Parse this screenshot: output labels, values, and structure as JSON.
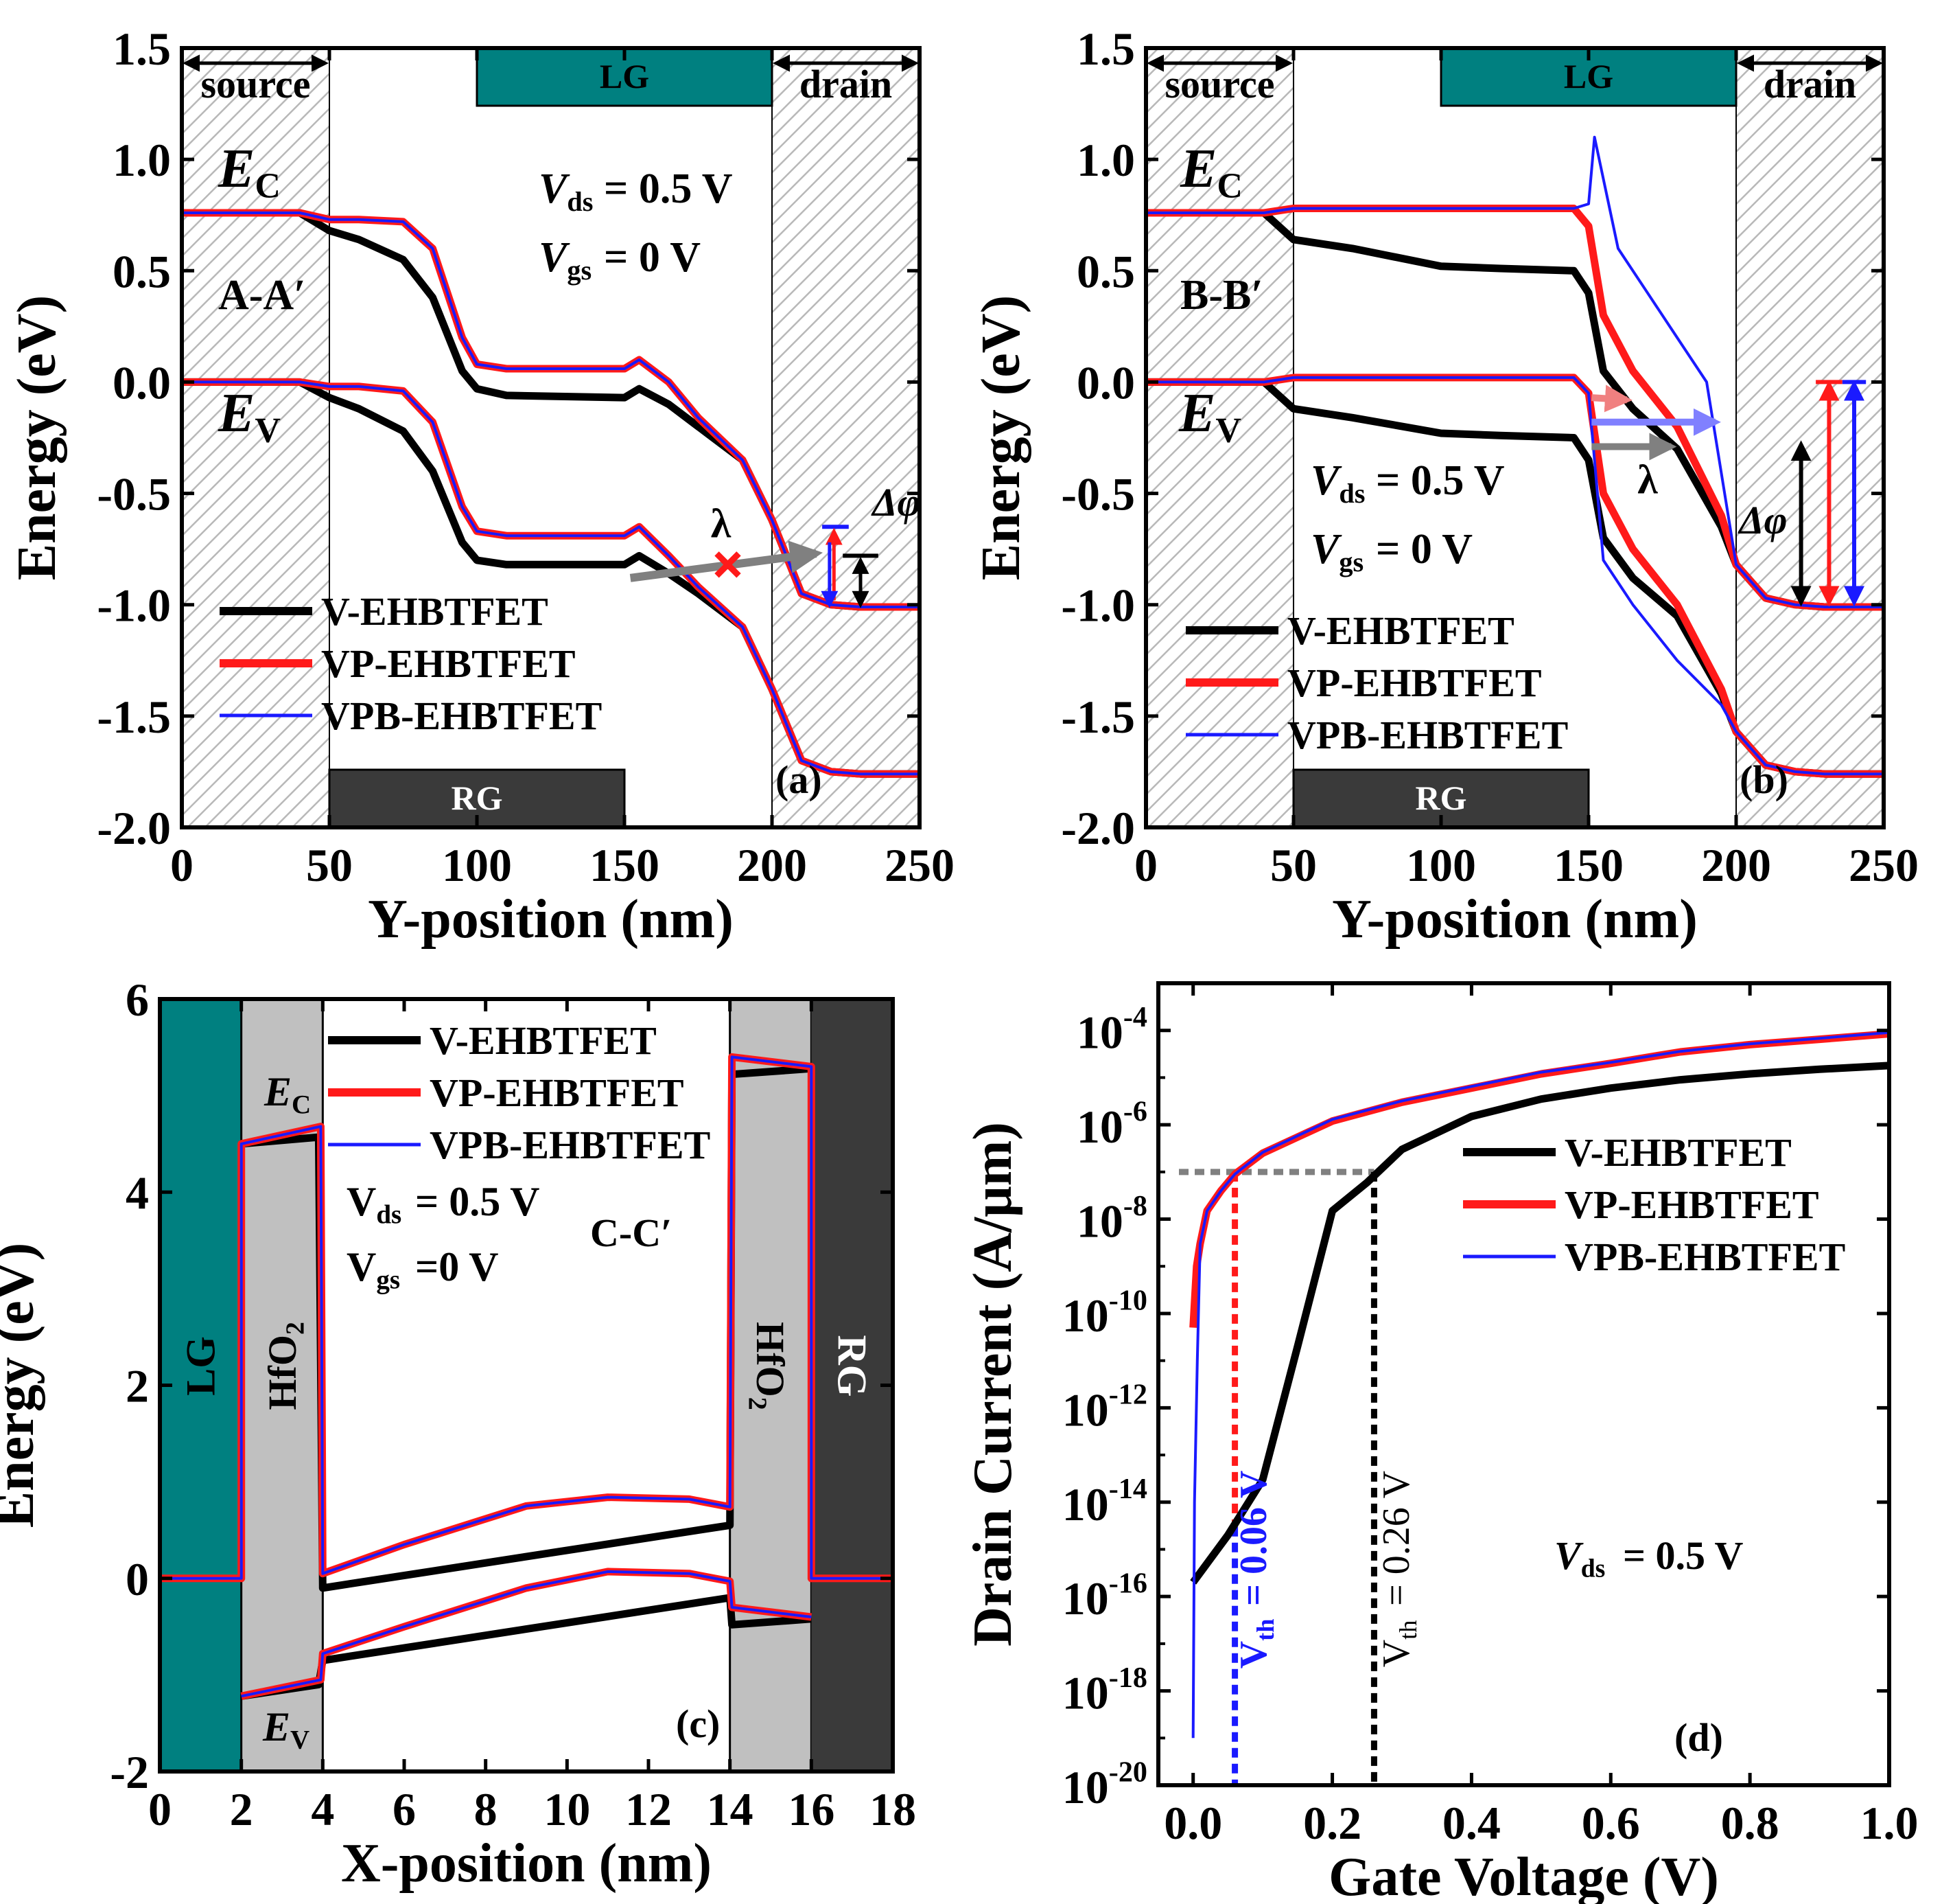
{
  "panels": {
    "a": {
      "label": "(a)",
      "xlabel": "Y-position (nm)",
      "ylabel": "Energy (eV)",
      "section": "A-A′",
      "ec": "E",
      "ec_sub": "C",
      "ev": "E",
      "ev_sub": "V",
      "vds": "= 0.5 V",
      "vgs": "= 0 V",
      "lambda": "λ",
      "dphi": "Δφ",
      "source": "source",
      "drain": "drain",
      "lg": "LG",
      "rg": "RG"
    },
    "b": {
      "label": "(b)",
      "xlabel": "Y-position (nm)",
      "ylabel": "Energy (eV)",
      "section": "B-B′",
      "ec": "E",
      "ec_sub": "C",
      "ev": "E",
      "ev_sub": "V",
      "vds": "= 0.5 V",
      "vgs": "= 0 V",
      "lambda": "λ",
      "dphi": "Δφ",
      "source": "source",
      "drain": "drain",
      "lg": "LG",
      "rg": "RG"
    },
    "c": {
      "label": "(c)",
      "xlabel": "X-position (nm)",
      "ylabel": "Energy (eV)",
      "section": "C-C′",
      "ec": "E",
      "ec_sub": "C",
      "ev": "E",
      "ev_sub": "V",
      "vds": "= 0.5 V",
      "vgs": "=0 V",
      "lg": "LG",
      "rg": "RG",
      "oxide": "HfO",
      "oxide_sub": "2"
    },
    "d": {
      "label": "(d)",
      "xlabel": "Gate Voltage (V)",
      "ylabel": "Drain Current (A/μm)",
      "vds": "= 0.5 V",
      "vth1": "= 0.06 V",
      "vth2": "= 0.26 V"
    }
  },
  "legend": [
    "V-EHBTFET",
    "VP-EHBTFET",
    "VPB-EHBTFET"
  ],
  "colors": {
    "v": "#000000",
    "vp": "#ff1a1a",
    "vpb": "#1a1aff",
    "lg": "#008080",
    "rg": "#3a3a3a",
    "oxide": "#c0c0c0",
    "hatch": "#b0b0b0"
  },
  "chart_data": [
    {
      "id": "a",
      "type": "line",
      "xlabel": "Y-position (nm)",
      "ylabel": "Energy (eV)",
      "xlim": [
        0,
        250
      ],
      "ylim": [
        -2.0,
        1.5
      ],
      "xticks": [
        0,
        50,
        100,
        150,
        200,
        250
      ],
      "yticks": [
        -2.0,
        -1.5,
        -1.0,
        -0.5,
        0.0,
        0.5,
        1.0,
        1.5
      ],
      "regions": {
        "source": [
          0,
          50
        ],
        "drain": [
          200,
          250
        ],
        "LG": [
          100,
          200
        ],
        "RG": [
          50,
          150
        ]
      },
      "series": [
        {
          "name": "V-EHBTFET",
          "band": "Ec",
          "x": [
            0,
            40,
            50,
            60,
            75,
            85,
            95,
            100,
            110,
            150,
            155,
            165,
            175,
            190,
            200,
            210,
            220,
            230,
            250
          ],
          "y": [
            0.76,
            0.76,
            0.68,
            0.64,
            0.55,
            0.38,
            0.05,
            -0.03,
            -0.06,
            -0.07,
            -0.03,
            -0.1,
            -0.2,
            -0.35,
            -0.62,
            -0.95,
            -1.0,
            -1.01,
            -1.01
          ]
        },
        {
          "name": "VP-EHBTFET",
          "band": "Ec",
          "x": [
            0,
            40,
            50,
            60,
            75,
            85,
            95,
            100,
            110,
            150,
            155,
            165,
            175,
            190,
            200,
            210,
            220,
            230,
            250
          ],
          "y": [
            0.76,
            0.76,
            0.73,
            0.73,
            0.72,
            0.6,
            0.2,
            0.08,
            0.06,
            0.06,
            0.1,
            0.0,
            -0.16,
            -0.35,
            -0.62,
            -0.95,
            -1.0,
            -1.01,
            -1.01
          ]
        },
        {
          "name": "VPB-EHBTFET",
          "band": "Ec",
          "x": [
            0,
            40,
            50,
            60,
            75,
            85,
            95,
            100,
            110,
            150,
            155,
            165,
            175,
            190,
            200,
            210,
            220,
            230,
            250
          ],
          "y": [
            0.76,
            0.76,
            0.73,
            0.73,
            0.72,
            0.6,
            0.2,
            0.08,
            0.06,
            0.06,
            0.1,
            0.0,
            -0.16,
            -0.35,
            -0.62,
            -0.95,
            -1.0,
            -1.01,
            -1.01
          ]
        },
        {
          "name": "V-EHBTFET",
          "band": "Ev",
          "x": [
            0,
            40,
            50,
            60,
            75,
            85,
            95,
            100,
            110,
            150,
            155,
            165,
            175,
            190,
            200,
            210,
            220,
            230,
            250
          ],
          "y": [
            0.0,
            0.0,
            -0.07,
            -0.12,
            -0.22,
            -0.4,
            -0.72,
            -0.8,
            -0.82,
            -0.82,
            -0.78,
            -0.86,
            -0.95,
            -1.1,
            -1.38,
            -1.7,
            -1.75,
            -1.76,
            -1.76
          ]
        },
        {
          "name": "VP-EHBTFET",
          "band": "Ev",
          "x": [
            0,
            40,
            50,
            60,
            75,
            85,
            95,
            100,
            110,
            150,
            155,
            165,
            175,
            190,
            200,
            210,
            220,
            230,
            250
          ],
          "y": [
            0.0,
            0.0,
            -0.02,
            -0.02,
            -0.04,
            -0.18,
            -0.56,
            -0.67,
            -0.69,
            -0.69,
            -0.65,
            -0.78,
            -0.92,
            -1.1,
            -1.38,
            -1.7,
            -1.75,
            -1.76,
            -1.76
          ]
        },
        {
          "name": "VPB-EHBTFET",
          "band": "Ev",
          "x": [
            0,
            40,
            50,
            60,
            75,
            85,
            95,
            100,
            110,
            150,
            155,
            165,
            175,
            190,
            200,
            210,
            220,
            230,
            250
          ],
          "y": [
            0.0,
            0.0,
            -0.02,
            -0.02,
            -0.04,
            -0.18,
            -0.56,
            -0.67,
            -0.69,
            -0.69,
            -0.65,
            -0.78,
            -0.92,
            -1.1,
            -1.38,
            -1.7,
            -1.75,
            -1.76,
            -1.76
          ]
        }
      ]
    },
    {
      "id": "b",
      "type": "line",
      "xlabel": "Y-position (nm)",
      "ylabel": "Energy (eV)",
      "xlim": [
        0,
        250
      ],
      "ylim": [
        -2.0,
        1.5
      ],
      "xticks": [
        0,
        50,
        100,
        150,
        200,
        250
      ],
      "yticks": [
        -2.0,
        -1.5,
        -1.0,
        -0.5,
        0.0,
        0.5,
        1.0,
        1.5
      ],
      "regions": {
        "source": [
          0,
          50
        ],
        "drain": [
          200,
          250
        ],
        "LG": [
          100,
          200
        ],
        "RG": [
          50,
          150
        ]
      },
      "series": [
        {
          "name": "V-EHBTFET",
          "band": "Ec",
          "x": [
            0,
            40,
            50,
            70,
            100,
            120,
            145,
            150,
            155,
            165,
            180,
            195,
            200,
            210,
            220,
            230,
            250
          ],
          "y": [
            0.76,
            0.76,
            0.64,
            0.6,
            0.52,
            0.51,
            0.5,
            0.4,
            0.05,
            -0.12,
            -0.3,
            -0.65,
            -0.82,
            -0.97,
            -1.0,
            -1.01,
            -1.01
          ]
        },
        {
          "name": "VP-EHBTFET",
          "band": "Ec",
          "x": [
            0,
            40,
            50,
            70,
            100,
            120,
            145,
            150,
            155,
            165,
            180,
            195,
            200,
            210,
            220,
            230,
            250
          ],
          "y": [
            0.76,
            0.76,
            0.78,
            0.78,
            0.78,
            0.78,
            0.78,
            0.7,
            0.3,
            0.05,
            -0.2,
            -0.6,
            -0.82,
            -0.97,
            -1.0,
            -1.01,
            -1.01
          ]
        },
        {
          "name": "VPB-EHBTFET",
          "band": "Ec",
          "x": [
            0,
            40,
            50,
            70,
            100,
            120,
            145,
            150,
            152,
            160,
            170,
            180,
            190,
            200,
            210,
            220,
            230,
            250
          ],
          "y": [
            0.76,
            0.76,
            0.78,
            0.78,
            0.78,
            0.78,
            0.78,
            0.8,
            1.1,
            0.6,
            0.4,
            0.2,
            0.0,
            -0.82,
            -0.97,
            -1.0,
            -1.01,
            -1.01
          ]
        },
        {
          "name": "V-EHBTFET",
          "band": "Ev",
          "x": [
            0,
            40,
            50,
            70,
            100,
            120,
            145,
            150,
            155,
            165,
            180,
            195,
            200,
            210,
            220,
            230,
            250
          ],
          "y": [
            0.0,
            0.0,
            -0.12,
            -0.16,
            -0.23,
            -0.24,
            -0.25,
            -0.35,
            -0.7,
            -0.88,
            -1.05,
            -1.4,
            -1.57,
            -1.72,
            -1.75,
            -1.76,
            -1.76
          ]
        },
        {
          "name": "VP-EHBTFET",
          "band": "Ev",
          "x": [
            0,
            40,
            50,
            70,
            100,
            120,
            145,
            150,
            155,
            165,
            180,
            195,
            200,
            210,
            220,
            230,
            250
          ],
          "y": [
            0.0,
            0.0,
            0.02,
            0.02,
            0.02,
            0.02,
            0.02,
            -0.05,
            -0.5,
            -0.75,
            -1.0,
            -1.38,
            -1.57,
            -1.72,
            -1.75,
            -1.76,
            -1.76
          ]
        },
        {
          "name": "VPB-EHBTFET",
          "band": "Ev",
          "x": [
            0,
            40,
            50,
            70,
            100,
            120,
            145,
            150,
            155,
            165,
            180,
            195,
            200,
            210,
            220,
            230,
            250
          ],
          "y": [
            0.0,
            0.0,
            0.02,
            0.02,
            0.02,
            0.02,
            0.02,
            -0.05,
            -0.8,
            -1.0,
            -1.25,
            -1.45,
            -1.57,
            -1.72,
            -1.75,
            -1.76,
            -1.76
          ]
        }
      ]
    },
    {
      "id": "c",
      "type": "line",
      "xlabel": "X-position (nm)",
      "ylabel": "Energy (eV)",
      "xlim": [
        0,
        18
      ],
      "ylim": [
        -2,
        6
      ],
      "xticks": [
        0,
        2,
        4,
        6,
        8,
        10,
        12,
        14,
        16,
        18
      ],
      "yticks": [
        -2,
        0,
        2,
        4,
        6
      ],
      "regions": {
        "LG": [
          0,
          2
        ],
        "HfO2_left": [
          2,
          4
        ],
        "HfO2_right": [
          14,
          16
        ],
        "RG": [
          16,
          18
        ]
      },
      "series": [
        {
          "name": "V-EHBTFET",
          "band": "Ec",
          "x": [
            2,
            3.9,
            4,
            14,
            14.05,
            16
          ],
          "y": [
            4.5,
            4.57,
            -0.1,
            0.55,
            5.22,
            5.28
          ]
        },
        {
          "name": "VP-EHBTFET",
          "band": "Ec",
          "x": [
            0,
            2,
            2,
            3.95,
            4,
            6,
            9,
            11,
            13,
            14,
            14.05,
            16,
            16,
            18
          ],
          "y": [
            0,
            0,
            4.5,
            4.68,
            0.05,
            0.35,
            0.75,
            0.84,
            0.82,
            0.74,
            5.4,
            5.3,
            0,
            0
          ]
        },
        {
          "name": "VPB-EHBTFET",
          "band": "Ec",
          "x": [
            0,
            2,
            2,
            3.95,
            4,
            6,
            9,
            11,
            13,
            14,
            14.05,
            16,
            16,
            18
          ],
          "y": [
            0,
            0,
            4.5,
            4.68,
            0.05,
            0.35,
            0.75,
            0.84,
            0.82,
            0.74,
            5.4,
            5.3,
            0,
            0
          ]
        },
        {
          "name": "V-EHBTFET",
          "band": "Ev",
          "x": [
            2,
            3.9,
            4,
            14,
            14.05,
            16
          ],
          "y": [
            -1.22,
            -1.1,
            -0.85,
            -0.2,
            -0.48,
            -0.42
          ]
        },
        {
          "name": "VP-EHBTFET",
          "band": "Ev",
          "x": [
            2,
            3.95,
            4,
            6,
            9,
            11,
            13,
            14,
            14.05,
            16
          ],
          "y": [
            -1.22,
            -1.05,
            -0.78,
            -0.5,
            -0.1,
            0.07,
            0.05,
            -0.03,
            -0.3,
            -0.4
          ]
        },
        {
          "name": "VPB-EHBTFET",
          "band": "Ev",
          "x": [
            2,
            3.95,
            4,
            6,
            9,
            11,
            13,
            14,
            14.05,
            16
          ],
          "y": [
            -1.22,
            -1.05,
            -0.78,
            -0.5,
            -0.1,
            0.07,
            0.05,
            -0.03,
            -0.3,
            -0.4
          ]
        }
      ]
    },
    {
      "id": "d",
      "type": "line",
      "yscale": "log",
      "xlabel": "Gate Voltage (V)",
      "ylabel": "Drain Current (A/μm)",
      "xlim": [
        -0.05,
        1.0
      ],
      "ylim": [
        1e-20,
        0.001
      ],
      "xticks": [
        0.0,
        0.2,
        0.4,
        0.6,
        0.8,
        1.0
      ],
      "yticks_exp": [
        -20,
        -18,
        -16,
        -14,
        -12,
        -10,
        -8,
        -6,
        -4
      ],
      "threshold_current": 1e-07,
      "vth": {
        "V-EHBTFET": 0.26,
        "VP-EHBTFET": 0.06,
        "VPB-EHBTFET": 0.06
      },
      "series": [
        {
          "name": "V-EHBTFET",
          "x": [
            0.0,
            0.05,
            0.1,
            0.15,
            0.2,
            0.25,
            0.3,
            0.4,
            0.5,
            0.6,
            0.7,
            0.8,
            0.9,
            1.0
          ],
          "y": [
            2e-16,
            2e-15,
            3e-14,
            2e-11,
            1.5e-08,
            6e-08,
            3e-07,
            1.5e-06,
            3.5e-06,
            6e-06,
            9e-06,
            1.2e-05,
            1.5e-05,
            1.8e-05
          ]
        },
        {
          "name": "VP-EHBTFET",
          "x": [
            0.0,
            0.005,
            0.01,
            0.02,
            0.04,
            0.06,
            0.1,
            0.2,
            0.3,
            0.4,
            0.5,
            0.6,
            0.7,
            0.8,
            0.9,
            1.0
          ],
          "y": [
            5e-11,
            1e-09,
            3e-09,
            1.5e-08,
            4e-08,
            9e-08,
            2.5e-07,
            1.2e-06,
            3e-06,
            6e-06,
            1.2e-05,
            2e-05,
            3.5e-05,
            5e-05,
            6.5e-05,
            8.5e-05
          ]
        },
        {
          "name": "VPB-EHBTFET",
          "x": [
            0.0,
            0.002,
            0.006,
            0.01,
            0.02,
            0.04,
            0.06,
            0.1,
            0.2,
            0.3,
            0.4,
            0.5,
            0.6,
            0.7,
            0.8,
            0.9,
            1.0
          ],
          "y": [
            1e-19,
            1e-14,
            1e-11,
            3e-09,
            1.5e-08,
            4e-08,
            9e-08,
            2.6e-07,
            1.3e-06,
            3.2e-06,
            6.5e-06,
            1.3e-05,
            2.1e-05,
            3.6e-05,
            5.2e-05,
            6.8e-05,
            9e-05
          ]
        }
      ]
    }
  ]
}
